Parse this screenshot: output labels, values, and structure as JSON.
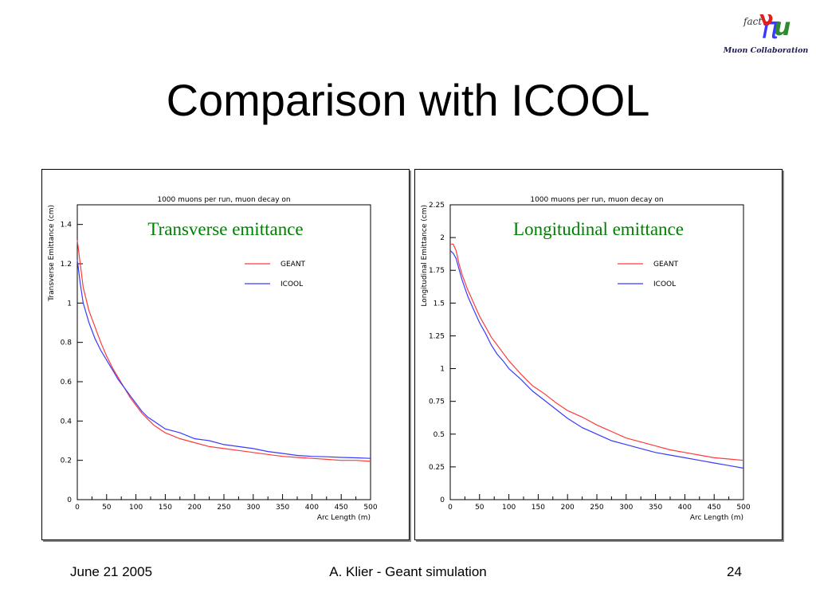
{
  "slide": {
    "title": "Comparison with ICOOL",
    "logo": {
      "fact": "fact",
      "caption": "Muon Collaboration"
    },
    "footer": {
      "date": "June 21 2005",
      "center": "A. Klier - Geant simulation",
      "page": "24"
    }
  },
  "colors": {
    "geant": "#ff3b3b",
    "icool": "#3a3aff",
    "overlay_label": "#008000"
  },
  "chart_data": [
    {
      "type": "line",
      "title": "1000 muons per run, muon decay on",
      "overlay_label": "Transverse emittance",
      "xlabel": "Arc Length (m)",
      "ylabel": "Transverse Emittance (cm)",
      "xlim": [
        0,
        500
      ],
      "ylim": [
        0,
        1.5
      ],
      "xticks": [
        "0",
        "50",
        "100",
        "150",
        "200",
        "250",
        "300",
        "350",
        "400",
        "450",
        "500"
      ],
      "yticks": [
        "0",
        "0.2",
        "0.4",
        "0.6",
        "0.8",
        "1",
        "1.2",
        "1.4"
      ],
      "ytick_values": [
        0,
        0.2,
        0.4,
        0.6,
        0.8,
        1.0,
        1.2,
        1.4
      ],
      "legend": "top-right",
      "grid": false,
      "series": [
        {
          "name": "GEANT",
          "x": [
            0,
            5,
            10,
            20,
            30,
            40,
            50,
            60,
            70,
            80,
            90,
            100,
            110,
            120,
            130,
            140,
            150,
            175,
            200,
            225,
            250,
            275,
            300,
            325,
            350,
            375,
            400,
            425,
            450,
            475,
            500
          ],
          "y": [
            1.32,
            1.2,
            1.08,
            0.96,
            0.88,
            0.8,
            0.73,
            0.67,
            0.62,
            0.57,
            0.52,
            0.48,
            0.44,
            0.41,
            0.38,
            0.36,
            0.34,
            0.31,
            0.29,
            0.27,
            0.26,
            0.25,
            0.24,
            0.23,
            0.22,
            0.215,
            0.21,
            0.205,
            0.2,
            0.2,
            0.195
          ]
        },
        {
          "name": "ICOOL",
          "x": [
            0,
            5,
            10,
            20,
            30,
            40,
            50,
            60,
            70,
            80,
            90,
            100,
            110,
            120,
            130,
            140,
            150,
            175,
            200,
            225,
            250,
            275,
            300,
            325,
            350,
            375,
            400,
            425,
            450,
            475,
            500
          ],
          "y": [
            1.22,
            1.1,
            1.0,
            0.9,
            0.82,
            0.76,
            0.71,
            0.66,
            0.61,
            0.57,
            0.53,
            0.49,
            0.45,
            0.42,
            0.4,
            0.38,
            0.36,
            0.34,
            0.31,
            0.3,
            0.28,
            0.27,
            0.26,
            0.245,
            0.235,
            0.225,
            0.22,
            0.218,
            0.215,
            0.213,
            0.21
          ]
        }
      ]
    },
    {
      "type": "line",
      "title": "1000 muons per run, muon decay on",
      "overlay_label": "Longitudinal emittance",
      "xlabel": "Arc Length (m)",
      "ylabel": "Longitudinal Emittance (cm)",
      "xlim": [
        0,
        500
      ],
      "ylim": [
        0,
        2.25
      ],
      "xticks": [
        "0",
        "50",
        "100",
        "150",
        "200",
        "250",
        "300",
        "350",
        "400",
        "450",
        "500"
      ],
      "yticks": [
        "0",
        "0.25",
        "0.5",
        "0.75",
        "1",
        "1.25",
        "1.5",
        "1.75",
        "2",
        "2.25"
      ],
      "ytick_values": [
        0,
        0.25,
        0.5,
        0.75,
        1.0,
        1.25,
        1.5,
        1.75,
        2.0,
        2.25
      ],
      "legend": "top-right",
      "grid": false,
      "series": [
        {
          "name": "GEANT",
          "x": [
            0,
            5,
            10,
            15,
            20,
            30,
            40,
            50,
            60,
            70,
            80,
            90,
            100,
            120,
            140,
            160,
            180,
            200,
            225,
            250,
            275,
            300,
            325,
            350,
            375,
            400,
            425,
            450,
            475,
            500
          ],
          "y": [
            1.95,
            1.95,
            1.9,
            1.8,
            1.72,
            1.6,
            1.5,
            1.4,
            1.32,
            1.24,
            1.18,
            1.12,
            1.06,
            0.96,
            0.87,
            0.81,
            0.74,
            0.68,
            0.63,
            0.57,
            0.52,
            0.47,
            0.44,
            0.41,
            0.38,
            0.36,
            0.34,
            0.32,
            0.31,
            0.3
          ]
        },
        {
          "name": "ICOOL",
          "x": [
            0,
            5,
            10,
            15,
            20,
            30,
            40,
            50,
            60,
            70,
            80,
            90,
            100,
            120,
            140,
            160,
            180,
            200,
            225,
            250,
            275,
            300,
            325,
            350,
            375,
            400,
            425,
            450,
            475,
            500
          ],
          "y": [
            1.9,
            1.88,
            1.84,
            1.76,
            1.68,
            1.55,
            1.45,
            1.35,
            1.27,
            1.18,
            1.11,
            1.06,
            1.0,
            0.92,
            0.83,
            0.76,
            0.69,
            0.62,
            0.55,
            0.5,
            0.45,
            0.42,
            0.39,
            0.36,
            0.34,
            0.32,
            0.3,
            0.28,
            0.26,
            0.24
          ]
        }
      ]
    }
  ]
}
